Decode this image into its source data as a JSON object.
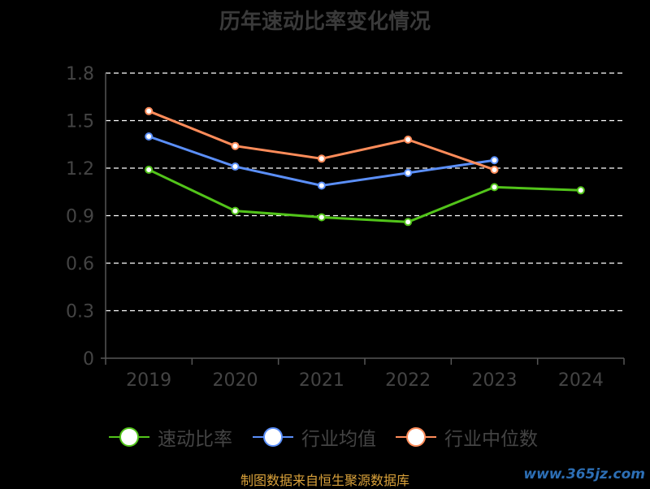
{
  "chart_data": {
    "type": "line",
    "title": "历年速动比率变化情况",
    "categories": [
      "2019",
      "2020",
      "2021",
      "2022",
      "2023",
      "2024"
    ],
    "ylim": [
      0,
      1.8
    ],
    "yticks": [
      "0",
      "0.3",
      "0.6",
      "0.9",
      "1.2",
      "1.5",
      "1.8"
    ],
    "grid": true,
    "legend_position": "bottom",
    "series": [
      {
        "name": "速动比率",
        "color": "#52c41a",
        "values": [
          1.19,
          0.93,
          0.89,
          0.86,
          1.08,
          1.06
        ]
      },
      {
        "name": "行业均值",
        "color": "#5b8ff9",
        "values": [
          1.4,
          1.21,
          1.09,
          1.17,
          1.25,
          null
        ]
      },
      {
        "name": "行业中位数",
        "color": "#ff8c5a",
        "values": [
          1.56,
          1.34,
          1.26,
          1.38,
          1.19,
          null
        ]
      }
    ]
  },
  "footer": {
    "source": "制图数据来自恒生聚源数据库",
    "watermark": "www.365jz.com"
  }
}
